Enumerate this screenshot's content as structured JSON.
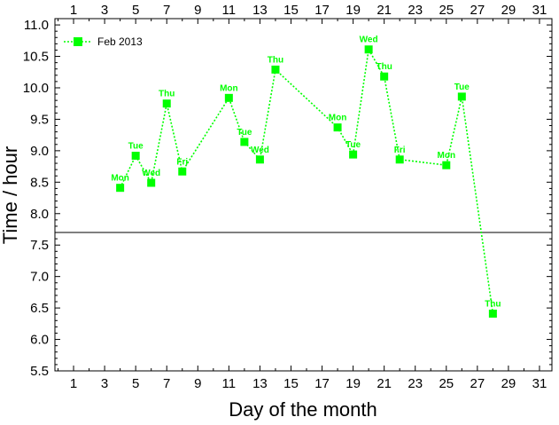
{
  "chart_data": {
    "type": "line",
    "xlabel": "Day of the month",
    "ylabel": "Time / hour",
    "xlim": [
      -0.2,
      31.8
    ],
    "ylim": [
      5.5,
      11.1
    ],
    "x_ticks": [
      1,
      3,
      5,
      7,
      9,
      11,
      13,
      15,
      17,
      19,
      21,
      23,
      25,
      27,
      29,
      31
    ],
    "y_ticks": [
      5.5,
      6.0,
      6.5,
      7.0,
      7.5,
      8.0,
      8.5,
      9.0,
      9.5,
      10.0,
      10.5,
      11.0
    ],
    "y_tick_labels": [
      "5.5",
      "6.0",
      "6.5",
      "7.0",
      "7.5",
      "8.0",
      "8.5",
      "9.0",
      "9.5",
      "10.0",
      "10.5",
      "11.0"
    ],
    "top_axis_ticks": [
      1,
      3,
      5,
      7,
      9,
      11,
      13,
      15,
      17,
      19,
      21,
      23,
      25,
      27,
      29,
      31
    ],
    "reference_line_y": 7.7,
    "legend_position": "top-left",
    "series_color": "#00ff00",
    "series": [
      {
        "name": "Feb 2013",
        "x": [
          4,
          5,
          6,
          7,
          8,
          11,
          12,
          13,
          14,
          18,
          19,
          20,
          21,
          22,
          25,
          26,
          28
        ],
        "values": [
          8.41,
          8.92,
          8.49,
          9.75,
          8.67,
          9.84,
          9.14,
          8.86,
          10.29,
          9.37,
          8.94,
          10.61,
          10.18,
          8.86,
          8.77,
          9.86,
          6.41
        ],
        "labels": [
          "Mon",
          "Tue",
          "Wed",
          "Thu",
          "Fri",
          "Mon",
          "Tue",
          "Wed",
          "Thu",
          "Mon",
          "Tue",
          "Wed",
          "Thu",
          "Fri",
          "Mon",
          "Tue",
          "Thu"
        ]
      }
    ]
  }
}
